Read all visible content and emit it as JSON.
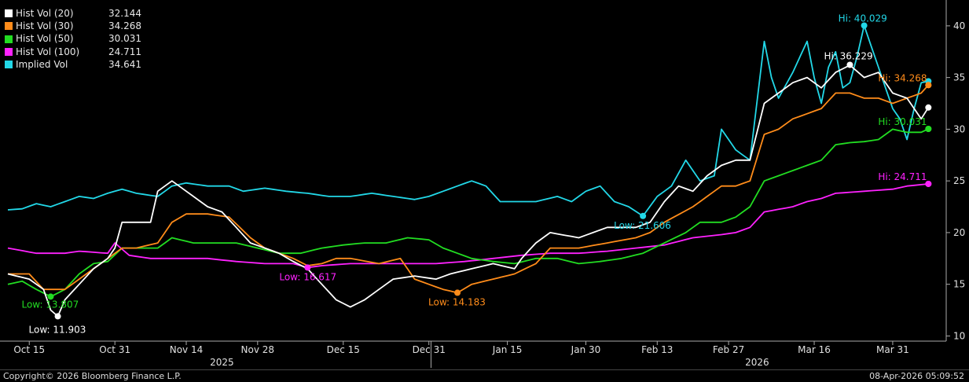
{
  "chart_data": {
    "type": "line",
    "x_ticks": [
      "Oct 15",
      "Oct 31",
      "Nov 14",
      "Nov 28",
      "Dec 15",
      "Dec 31",
      "Jan 15",
      "Jan 30",
      "Feb 13",
      "Feb 27",
      "Mar 16",
      "Mar 31"
    ],
    "x_tick_positions": [
      3,
      15,
      25,
      35,
      47,
      59,
      70,
      81,
      91,
      101,
      113,
      124
    ],
    "year_labels": [
      {
        "label": "2025",
        "index": 30
      },
      {
        "label": "2026",
        "index": 105
      }
    ],
    "year_divider_index": 59.3,
    "ylim": [
      9.5,
      42.5
    ],
    "y_ticks": [
      10,
      15,
      20,
      25,
      30,
      35,
      40
    ],
    "series": [
      {
        "name": "Hist Vol (20)",
        "color": "#ffffff",
        "last": "32.144",
        "keypoints": [
          [
            0,
            16
          ],
          [
            3,
            15.5
          ],
          [
            5,
            14.5
          ],
          [
            6,
            12.5
          ],
          [
            7,
            11.9
          ],
          [
            8,
            13.5
          ],
          [
            10,
            15
          ],
          [
            12,
            16.5
          ],
          [
            14,
            17.5
          ],
          [
            15,
            18.5
          ],
          [
            16,
            21
          ],
          [
            20,
            21
          ],
          [
            21,
            24
          ],
          [
            23,
            25
          ],
          [
            26,
            23.5
          ],
          [
            28,
            22.5
          ],
          [
            30,
            22
          ],
          [
            32,
            20.5
          ],
          [
            34,
            19
          ],
          [
            38,
            18
          ],
          [
            40,
            17.2
          ],
          [
            42,
            16.5
          ],
          [
            44,
            15
          ],
          [
            46,
            13.5
          ],
          [
            48,
            12.8
          ],
          [
            50,
            13.5
          ],
          [
            54,
            15.5
          ],
          [
            57,
            15.8
          ],
          [
            60,
            15.5
          ],
          [
            62,
            16
          ],
          [
            65,
            16.5
          ],
          [
            68,
            17
          ],
          [
            71,
            16.5
          ],
          [
            72,
            17.5
          ],
          [
            74,
            19
          ],
          [
            76,
            20
          ],
          [
            80,
            19.5
          ],
          [
            82,
            20
          ],
          [
            84,
            20.5
          ],
          [
            88,
            20.5
          ],
          [
            90,
            21
          ],
          [
            92,
            23
          ],
          [
            94,
            24.5
          ],
          [
            96,
            24
          ],
          [
            98,
            25.5
          ],
          [
            100,
            26.5
          ],
          [
            102,
            27
          ],
          [
            104,
            27
          ],
          [
            106,
            32.5
          ],
          [
            108,
            33.5
          ],
          [
            110,
            34.5
          ],
          [
            112,
            35
          ],
          [
            114,
            34
          ],
          [
            116,
            35.5
          ],
          [
            118,
            36.2
          ],
          [
            120,
            35
          ],
          [
            122,
            35.5
          ],
          [
            124,
            33.5
          ],
          [
            126,
            33
          ],
          [
            128,
            31
          ],
          [
            129,
            32.1
          ]
        ]
      },
      {
        "name": "Hist Vol (30)",
        "color": "#ff8c1a",
        "last": "34.268",
        "keypoints": [
          [
            0,
            16
          ],
          [
            3,
            16
          ],
          [
            5,
            14.5
          ],
          [
            8,
            14.5
          ],
          [
            10,
            15.5
          ],
          [
            12,
            16.5
          ],
          [
            14,
            17.5
          ],
          [
            16,
            18.5
          ],
          [
            18,
            18.5
          ],
          [
            21,
            19
          ],
          [
            23,
            21
          ],
          [
            25,
            21.8
          ],
          [
            28,
            21.8
          ],
          [
            31,
            21.5
          ],
          [
            34,
            19.5
          ],
          [
            36,
            18.5
          ],
          [
            38,
            18
          ],
          [
            40,
            17.5
          ],
          [
            42,
            16.8
          ],
          [
            44,
            17
          ],
          [
            46,
            17.5
          ],
          [
            48,
            17.5
          ],
          [
            52,
            17
          ],
          [
            55,
            17.5
          ],
          [
            57,
            15.5
          ],
          [
            59,
            15
          ],
          [
            61,
            14.5
          ],
          [
            63,
            14.18
          ],
          [
            65,
            15
          ],
          [
            68,
            15.5
          ],
          [
            71,
            16
          ],
          [
            74,
            17
          ],
          [
            76,
            18.5
          ],
          [
            80,
            18.5
          ],
          [
            84,
            19
          ],
          [
            88,
            19.5
          ],
          [
            90,
            20
          ],
          [
            92,
            21
          ],
          [
            96,
            22.5
          ],
          [
            98,
            23.5
          ],
          [
            100,
            24.5
          ],
          [
            102,
            24.5
          ],
          [
            104,
            25
          ],
          [
            106,
            29.5
          ],
          [
            108,
            30
          ],
          [
            110,
            31
          ],
          [
            112,
            31.5
          ],
          [
            114,
            32
          ],
          [
            116,
            33.5
          ],
          [
            118,
            33.5
          ],
          [
            120,
            33
          ],
          [
            122,
            33
          ],
          [
            124,
            32.5
          ],
          [
            126,
            33
          ],
          [
            128,
            33.5
          ],
          [
            129,
            34.27
          ]
        ]
      },
      {
        "name": "Hist Vol (50)",
        "color": "#22dd22",
        "last": "30.031",
        "keypoints": [
          [
            0,
            15
          ],
          [
            2,
            15.3
          ],
          [
            4,
            14.5
          ],
          [
            6,
            13.8
          ],
          [
            8,
            14.5
          ],
          [
            10,
            16
          ],
          [
            12,
            17
          ],
          [
            14,
            17.2
          ],
          [
            16,
            18.5
          ],
          [
            18,
            18.5
          ],
          [
            21,
            18.5
          ],
          [
            23,
            19.5
          ],
          [
            26,
            19
          ],
          [
            29,
            19
          ],
          [
            32,
            19
          ],
          [
            35,
            18.5
          ],
          [
            38,
            18
          ],
          [
            41,
            18
          ],
          [
            44,
            18.5
          ],
          [
            47,
            18.8
          ],
          [
            50,
            19
          ],
          [
            53,
            19
          ],
          [
            56,
            19.5
          ],
          [
            59,
            19.3
          ],
          [
            61,
            18.5
          ],
          [
            63,
            18
          ],
          [
            65,
            17.5
          ],
          [
            68,
            17.2
          ],
          [
            71,
            17
          ],
          [
            74,
            17.5
          ],
          [
            77,
            17.5
          ],
          [
            80,
            17
          ],
          [
            83,
            17.2
          ],
          [
            86,
            17.5
          ],
          [
            89,
            18
          ],
          [
            92,
            19
          ],
          [
            95,
            20
          ],
          [
            97,
            21
          ],
          [
            100,
            21
          ],
          [
            102,
            21.5
          ],
          [
            104,
            22.5
          ],
          [
            106,
            25
          ],
          [
            108,
            25.5
          ],
          [
            110,
            26
          ],
          [
            112,
            26.5
          ],
          [
            114,
            27
          ],
          [
            116,
            28.5
          ],
          [
            118,
            28.7
          ],
          [
            120,
            28.8
          ],
          [
            122,
            29
          ],
          [
            124,
            30
          ],
          [
            126,
            29.7
          ],
          [
            128,
            29.7
          ],
          [
            129,
            30.03
          ]
        ]
      },
      {
        "name": "Hist Vol (100)",
        "color": "#ff22ff",
        "last": "24.711",
        "keypoints": [
          [
            0,
            18.5
          ],
          [
            4,
            18
          ],
          [
            8,
            18
          ],
          [
            10,
            18.2
          ],
          [
            14,
            18
          ],
          [
            15,
            19
          ],
          [
            17,
            17.8
          ],
          [
            20,
            17.5
          ],
          [
            24,
            17.5
          ],
          [
            28,
            17.5
          ],
          [
            32,
            17.2
          ],
          [
            36,
            17
          ],
          [
            40,
            17
          ],
          [
            42,
            16.62
          ],
          [
            44,
            16.8
          ],
          [
            48,
            17
          ],
          [
            52,
            17
          ],
          [
            56,
            17
          ],
          [
            60,
            17
          ],
          [
            64,
            17.2
          ],
          [
            68,
            17.5
          ],
          [
            72,
            17.8
          ],
          [
            76,
            18
          ],
          [
            80,
            18
          ],
          [
            84,
            18.2
          ],
          [
            88,
            18.5
          ],
          [
            92,
            18.8
          ],
          [
            96,
            19.5
          ],
          [
            100,
            19.8
          ],
          [
            102,
            20
          ],
          [
            104,
            20.5
          ],
          [
            106,
            22
          ],
          [
            110,
            22.5
          ],
          [
            112,
            23
          ],
          [
            114,
            23.3
          ],
          [
            116,
            23.8
          ],
          [
            120,
            24
          ],
          [
            124,
            24.2
          ],
          [
            126,
            24.5
          ],
          [
            129,
            24.71
          ]
        ]
      },
      {
        "name": "Implied Vol",
        "color": "#22d8e8",
        "last": "34.641",
        "keypoints": [
          [
            0,
            22.2
          ],
          [
            2,
            22.3
          ],
          [
            4,
            22.8
          ],
          [
            6,
            22.5
          ],
          [
            8,
            23
          ],
          [
            10,
            23.5
          ],
          [
            12,
            23.3
          ],
          [
            14,
            23.8
          ],
          [
            16,
            24.2
          ],
          [
            18,
            23.8
          ],
          [
            21,
            23.5
          ],
          [
            23,
            24.5
          ],
          [
            25,
            24.8
          ],
          [
            28,
            24.5
          ],
          [
            31,
            24.5
          ],
          [
            33,
            24
          ],
          [
            36,
            24.3
          ],
          [
            39,
            24
          ],
          [
            42,
            23.8
          ],
          [
            45,
            23.5
          ],
          [
            48,
            23.5
          ],
          [
            51,
            23.8
          ],
          [
            54,
            23.5
          ],
          [
            57,
            23.2
          ],
          [
            59,
            23.5
          ],
          [
            61,
            24
          ],
          [
            63,
            24.5
          ],
          [
            65,
            25
          ],
          [
            67,
            24.5
          ],
          [
            69,
            23
          ],
          [
            71,
            23
          ],
          [
            74,
            23
          ],
          [
            77,
            23.5
          ],
          [
            79,
            23
          ],
          [
            81,
            24
          ],
          [
            83,
            24.5
          ],
          [
            85,
            23
          ],
          [
            87,
            22.5
          ],
          [
            89,
            21.6
          ],
          [
            91,
            23.5
          ],
          [
            93,
            24.5
          ],
          [
            95,
            27
          ],
          [
            97,
            25
          ],
          [
            99,
            25.5
          ],
          [
            100,
            30
          ],
          [
            102,
            28
          ],
          [
            104,
            27
          ],
          [
            106,
            38.5
          ],
          [
            107,
            35
          ],
          [
            108,
            33
          ],
          [
            110,
            35.5
          ],
          [
            112,
            38.5
          ],
          [
            113,
            35
          ],
          [
            114,
            32.5
          ],
          [
            115,
            36
          ],
          [
            116,
            37.5
          ],
          [
            117,
            34
          ],
          [
            118,
            34.5
          ],
          [
            119,
            37
          ],
          [
            120,
            40.03
          ],
          [
            121,
            38
          ],
          [
            123,
            34
          ],
          [
            124,
            32
          ],
          [
            125,
            31
          ],
          [
            126,
            29
          ],
          [
            127,
            32
          ],
          [
            128,
            34.5
          ],
          [
            129,
            34.64
          ]
        ]
      }
    ],
    "annotations": [
      {
        "series": "Hist Vol (20)",
        "label": "Low: 11.903",
        "index": 7,
        "value": 11.903,
        "dx": -37,
        "dy": 21,
        "color": "#ffffff"
      },
      {
        "series": "Hist Vol (50)",
        "label": "Low: 13.807",
        "index": 6,
        "value": 13.807,
        "dx": -37,
        "dy": 14,
        "color": "#22dd22"
      },
      {
        "series": "Hist Vol (100)",
        "label": "Low: 16.617",
        "index": 42,
        "value": 16.617,
        "dx": -36,
        "dy": 16,
        "color": "#ff22ff"
      },
      {
        "series": "Hist Vol (30)",
        "label": "Low: 14.183",
        "index": 63,
        "value": 14.183,
        "dx": -37,
        "dy": 16,
        "color": "#ff8c1a"
      },
      {
        "series": "Implied Vol",
        "label": "Low: 21.606",
        "index": 89,
        "value": 21.606,
        "dx": -37,
        "dy": 16,
        "color": "#22d8e8"
      },
      {
        "series": "Implied Vol",
        "label": "Hi: 40.029",
        "index": 120,
        "value": 40.029,
        "dx": -33,
        "dy": -5,
        "color": "#22d8e8"
      },
      {
        "series": "Hist Vol (20)",
        "label": "Hi: 36.229",
        "index": 118,
        "value": 36.229,
        "dx": -33,
        "dy": -7,
        "color": "#ffffff"
      },
      {
        "series": "Hist Vol (30)",
        "label": "Hi: 34.268",
        "index": 129,
        "value": 34.268,
        "dx": -64,
        "dy": -5,
        "color": "#ff8c1a"
      },
      {
        "series": "Hist Vol (50)",
        "label": "Hi: 30.031",
        "index": 129,
        "value": 30.031,
        "dx": -64,
        "dy": -5,
        "color": "#22dd22"
      },
      {
        "series": "Hist Vol (100)",
        "label": "Hi: 24.711",
        "index": 129,
        "value": 24.711,
        "dx": -64,
        "dy": -5,
        "color": "#ff22ff"
      }
    ]
  },
  "footer": {
    "copyright": "Copyright© 2026 Bloomberg Finance L.P.",
    "timestamp": "08-Apr-2026 05:09:52"
  }
}
